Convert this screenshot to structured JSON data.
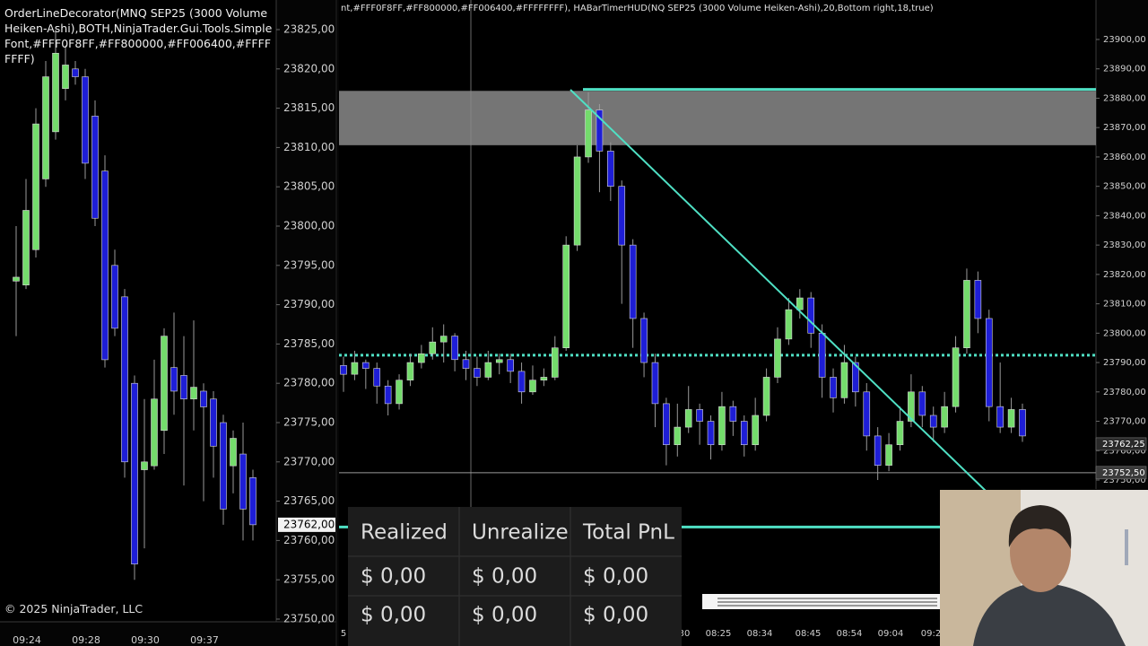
{
  "left_chart": {
    "header": "OrderLineDecorator(MNQ SEP25 (3000 Volume Heiken-Ashi),BOTH,NinjaTrader.Gui.Tools.SimpleFont,#FFF0F8FF,#FF800000,#FF006400,#FFFFFFFF)",
    "y_ticks": [
      {
        "value": 23825,
        "label": "23825,00"
      },
      {
        "value": 23820,
        "label": "23820,00"
      },
      {
        "value": 23815,
        "label": "23815,00"
      },
      {
        "value": 23810,
        "label": "23810,00"
      },
      {
        "value": 23805,
        "label": "23805,00"
      },
      {
        "value": 23800,
        "label": "23800,00"
      },
      {
        "value": 23795,
        "label": "23795,00"
      },
      {
        "value": 23790,
        "label": "23790,00"
      },
      {
        "value": 23785,
        "label": "23785,00"
      },
      {
        "value": 23780,
        "label": "23780,00"
      },
      {
        "value": 23775,
        "label": "23775,00"
      },
      {
        "value": 23770,
        "label": "23770,00"
      },
      {
        "value": 23765,
        "label": "23765,00"
      },
      {
        "value": 23760,
        "label": "23760,00"
      },
      {
        "value": 23755,
        "label": "23755,00"
      },
      {
        "value": 23750,
        "label": "23750,00"
      }
    ],
    "x_labels": [
      "09:24",
      "09:28",
      "09:30",
      "09:37"
    ],
    "candles": [
      [
        23793,
        23800,
        23786,
        23793.5
      ],
      [
        23792.5,
        23806,
        23792,
        23802
      ],
      [
        23797,
        23815,
        23796,
        23813
      ],
      [
        23806,
        23821,
        23805,
        23819
      ],
      [
        23812,
        23825,
        23811,
        23822
      ],
      [
        23817.5,
        23823,
        23816,
        23820.5
      ],
      [
        23820,
        23821,
        23818,
        23819
      ],
      [
        23819,
        23820,
        23806,
        23808
      ],
      [
        23814,
        23816,
        23800,
        23801
      ],
      [
        23807,
        23809,
        23782,
        23783
      ],
      [
        23795,
        23797,
        23786,
        23787
      ],
      [
        23791,
        23792,
        23768,
        23770
      ],
      [
        23780,
        23781,
        23755,
        23757
      ],
      [
        23769,
        23778,
        23759,
        23770
      ],
      [
        23769.5,
        23783,
        23769,
        23778
      ],
      [
        23774,
        23787,
        23771,
        23786
      ],
      [
        23782,
        23789,
        23776,
        23779
      ],
      [
        23781,
        23786,
        23767,
        23778
      ],
      [
        23778,
        23788,
        23774,
        23779.5
      ],
      [
        23779,
        23780,
        23765,
        23777
      ],
      [
        23778,
        23779,
        23768,
        23772
      ],
      [
        23775,
        23776,
        23762,
        23764
      ],
      [
        23769.5,
        23774,
        23766,
        23773
      ],
      [
        23771,
        23775,
        23760,
        23764
      ],
      [
        23768,
        23769,
        23760,
        23762
      ]
    ],
    "up_color": "#74dc6c",
    "down_color": "#1e1ed6",
    "last_price": {
      "value": 23762,
      "label": "23762,00"
    },
    "copyright": "© 2025 NinjaTrader, LLC"
  },
  "right_chart": {
    "header": "nt,#FFF0F8FF,#FF800000,#FF006400,#FFFFFFFF), HABarTimerHUD(NQ SEP25 (3000 Volume Heiken-Ashi),20,Bottom right,18,true)",
    "y_ticks": [
      {
        "value": 23900,
        "label": "23900,00"
      },
      {
        "value": 23890,
        "label": "23890,00"
      },
      {
        "value": 23880,
        "label": "23880,00"
      },
      {
        "value": 23870,
        "label": "23870,00"
      },
      {
        "value": 23860,
        "label": "23860,00"
      },
      {
        "value": 23850,
        "label": "23850,00"
      },
      {
        "value": 23840,
        "label": "23840,00"
      },
      {
        "value": 23830,
        "label": "23830,00"
      },
      {
        "value": 23820,
        "label": "23820,00"
      },
      {
        "value": 23810,
        "label": "23810,00"
      },
      {
        "value": 23800,
        "label": "23800,00"
      },
      {
        "value": 23790,
        "label": "23790,00"
      },
      {
        "value": 23780,
        "label": "23780,00"
      },
      {
        "value": 23770,
        "label": "23770,00"
      },
      {
        "value": 23760,
        "label": "23760,00"
      },
      {
        "value": 23750,
        "label": "23750,00"
      }
    ],
    "x_labels": [
      "5",
      "30",
      "08:25",
      "08:34",
      "08:45",
      "08:54",
      "09:04",
      "09:2"
    ],
    "candles": [
      [
        23789,
        23792,
        23780,
        23786
      ],
      [
        23786,
        23794,
        23784,
        23790
      ],
      [
        23790,
        23791,
        23781,
        23788
      ],
      [
        23788,
        23790,
        23776,
        23782
      ],
      [
        23782,
        23784,
        23772,
        23776
      ],
      [
        23776,
        23786,
        23774,
        23784
      ],
      [
        23784,
        23793,
        23782,
        23790
      ],
      [
        23790,
        23796,
        23788,
        23793
      ],
      [
        23793,
        23802,
        23791,
        23797
      ],
      [
        23797,
        23803,
        23790,
        23799
      ],
      [
        23799,
        23800,
        23787,
        23791
      ],
      [
        23791,
        23794,
        23784,
        23788
      ],
      [
        23788,
        23792,
        23782,
        23785
      ],
      [
        23785,
        23794,
        23784,
        23790
      ],
      [
        23790,
        23793,
        23786,
        23791
      ],
      [
        23791,
        23793,
        23783,
        23787
      ],
      [
        23787,
        23790,
        23776,
        23780
      ],
      [
        23780,
        23789,
        23779,
        23784
      ],
      [
        23784,
        23788,
        23782,
        23785
      ],
      [
        23785,
        23799,
        23784,
        23795
      ],
      [
        23795,
        23833,
        23794,
        23830
      ],
      [
        23830,
        23864,
        23828,
        23860
      ],
      [
        23860,
        23882,
        23858,
        23876
      ],
      [
        23876,
        23878,
        23848,
        23862
      ],
      [
        23862,
        23865,
        23845,
        23850
      ],
      [
        23850,
        23852,
        23810,
        23830
      ],
      [
        23830,
        23832,
        23795,
        23805
      ],
      [
        23805,
        23807,
        23785,
        23790
      ],
      [
        23790,
        23793,
        23768,
        23776
      ],
      [
        23776,
        23778,
        23755,
        23762
      ],
      [
        23762,
        23776,
        23758,
        23768
      ],
      [
        23768,
        23782,
        23766,
        23774
      ],
      [
        23774,
        23776,
        23762,
        23770
      ],
      [
        23770,
        23772,
        23757,
        23762
      ],
      [
        23762,
        23780,
        23760,
        23775
      ],
      [
        23775,
        23777,
        23765,
        23770
      ],
      [
        23770,
        23772,
        23758,
        23762
      ],
      [
        23762,
        23778,
        23760,
        23772
      ],
      [
        23772,
        23788,
        23770,
        23785
      ],
      [
        23785,
        23802,
        23783,
        23798
      ],
      [
        23798,
        23812,
        23796,
        23808
      ],
      [
        23808,
        23815,
        23805,
        23812
      ],
      [
        23812,
        23814,
        23795,
        23800
      ],
      [
        23800,
        23803,
        23778,
        23785
      ],
      [
        23785,
        23788,
        23773,
        23778
      ],
      [
        23778,
        23796,
        23776,
        23790
      ],
      [
        23790,
        23792,
        23775,
        23780
      ],
      [
        23780,
        23783,
        23760,
        23765
      ],
      [
        23765,
        23768,
        23750,
        23755
      ],
      [
        23755,
        23766,
        23753,
        23762
      ],
      [
        23762,
        23775,
        23760,
        23770
      ],
      [
        23770,
        23786,
        23768,
        23780
      ],
      [
        23780,
        23782,
        23768,
        23772
      ],
      [
        23772,
        23775,
        23763,
        23768
      ],
      [
        23768,
        23780,
        23766,
        23775
      ],
      [
        23775,
        23799,
        23773,
        23795
      ],
      [
        23795,
        23822,
        23793,
        23818
      ],
      [
        23818,
        23821,
        23800,
        23805
      ],
      [
        23805,
        23808,
        23770,
        23775
      ],
      [
        23775,
        23790,
        23766,
        23768
      ],
      [
        23768,
        23778,
        23766,
        23774
      ],
      [
        23774,
        23776,
        23763,
        23765
      ]
    ],
    "up_color": "#74dc6c",
    "down_color": "#1e1ed6",
    "zone": [
      23882.5,
      23864
    ],
    "levels": [
      23883,
      23792.5,
      23734
    ],
    "level_styles": [
      "solid",
      "dotted",
      "solid"
    ],
    "level_color": "#4fe0c4",
    "last_price": {
      "value": 23762.25,
      "label": "23762,25"
    },
    "line_price": {
      "value": 23752.5,
      "label": "23752,50"
    }
  },
  "pnl_table": {
    "headers": [
      "Realized",
      "Unrealize",
      "Total PnL"
    ],
    "rows": [
      [
        "$ 0,00",
        "$ 0,00",
        "$ 0,00"
      ],
      [
        "$ 0,00",
        "$ 0,00",
        "$ 0,00"
      ]
    ]
  }
}
